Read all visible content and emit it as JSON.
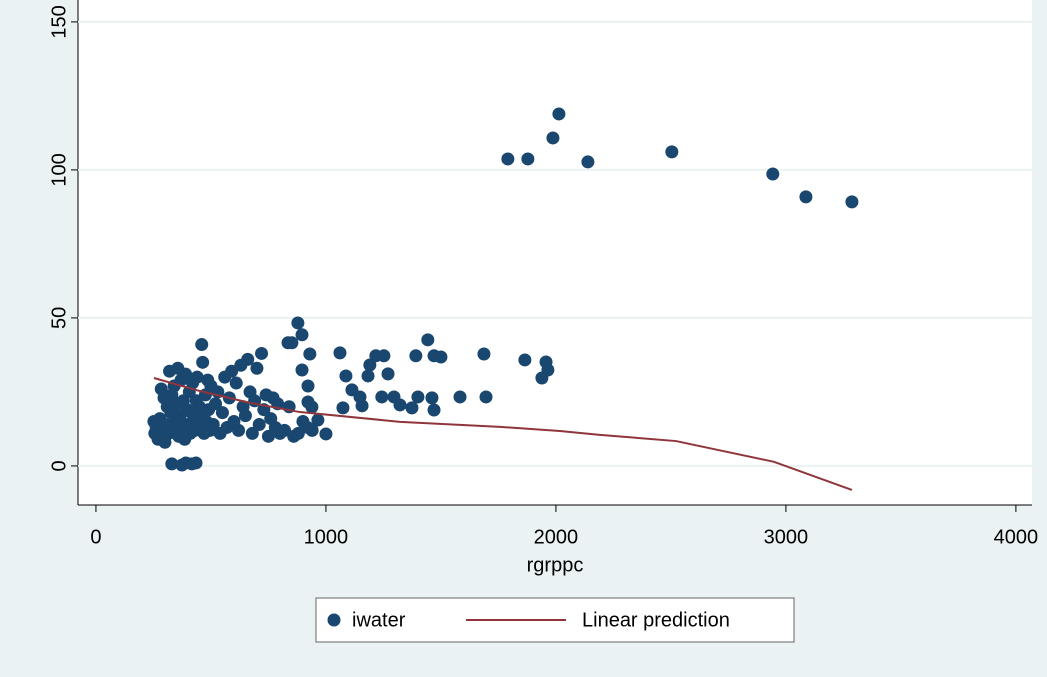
{
  "chart_data": {
    "type": "scatter",
    "xlabel": "rgrppc",
    "xlim": [
      -78,
      4070
    ],
    "ylim": [
      -13.2,
      157.4
    ],
    "xticks": [
      0,
      1000,
      2000,
      3000,
      4000
    ],
    "yticks": [
      0,
      50,
      100,
      150
    ],
    "grid": true,
    "series": [
      {
        "name": "iwater",
        "mark": "scatter",
        "color": "#1a476f",
        "x": [
          1791,
          1878,
          1987,
          2013,
          2139,
          2504,
          2943,
          3087,
          3287,
          878,
          896,
          852,
          835,
          930,
          896,
          922,
          922,
          939,
          965,
          1000,
          1061,
          1087,
          1074,
          1113,
          1148,
          1157,
          1183,
          1191,
          1217,
          1252,
          1270,
          1243,
          1296,
          1322,
          1374,
          1400,
          1391,
          1443,
          1470,
          1500,
          1461,
          1470,
          1583,
          1687,
          1696,
          1865,
          1957,
          1965,
          1939,
          330,
          374,
          391,
          417,
          435,
          252,
          256,
          262,
          270,
          278,
          284,
          290,
          296,
          300,
          304,
          310,
          316,
          320,
          326,
          330,
          336,
          340,
          346,
          350,
          356,
          360,
          366,
          370,
          376,
          380,
          386,
          390,
          396,
          400,
          406,
          410,
          416,
          420,
          426,
          430,
          436,
          440,
          446,
          450,
          456,
          460,
          464,
          470,
          476,
          480,
          486,
          490,
          496,
          500,
          510,
          520,
          530,
          540,
          550,
          560,
          570,
          580,
          590,
          600,
          610,
          620,
          630,
          640,
          650,
          660,
          670,
          680,
          690,
          700,
          710,
          720,
          730,
          740,
          750,
          760,
          770,
          780,
          790,
          800,
          820,
          840,
          860,
          880,
          900,
          920,
          940
        ],
        "values": [
          103.7,
          103.7,
          110.8,
          118.9,
          102.7,
          106.1,
          98.6,
          90.9,
          89.2,
          48.3,
          44.3,
          41.6,
          41.6,
          37.8,
          32.4,
          27,
          21.6,
          19.9,
          15.5,
          10.8,
          38.2,
          30.4,
          19.6,
          25.7,
          23.3,
          20.3,
          30.4,
          34.1,
          37.2,
          37.2,
          31.1,
          23.3,
          23.3,
          20.6,
          19.6,
          23.3,
          37.2,
          42.6,
          37.2,
          36.8,
          23,
          18.9,
          23.3,
          37.8,
          23.3,
          35.8,
          35.1,
          32.4,
          29.7,
          0.7,
          0.3,
          1,
          0.7,
          1,
          15,
          11,
          13,
          9,
          16,
          26,
          10,
          23,
          8,
          14,
          20,
          11,
          32,
          18,
          24,
          12,
          27,
          15,
          21,
          33,
          10,
          17,
          29,
          13,
          22,
          9,
          31,
          19,
          14,
          25,
          11,
          18,
          28,
          16,
          12,
          22,
          30,
          13,
          20,
          17,
          41,
          35,
          11,
          24,
          15,
          29,
          19,
          12,
          27,
          14,
          21,
          25,
          11,
          18,
          30,
          13,
          23,
          32,
          15,
          28,
          12,
          34,
          20,
          17,
          36,
          25,
          11,
          22,
          33,
          14,
          38,
          19,
          24,
          10,
          16,
          23,
          13,
          21,
          11,
          12,
          20,
          10,
          11,
          15,
          13,
          12
        ]
      },
      {
        "name": "Linear prediction",
        "mark": "line",
        "color": "#90353b",
        "x": [
          252,
          452,
          670,
          887,
          1322,
          1757,
          2017,
          2191,
          2522,
          2948,
          3287
        ],
        "values": [
          29.7,
          25.3,
          21.3,
          18.2,
          14.9,
          13.2,
          11.8,
          10.5,
          8.4,
          1.4,
          -8.1
        ]
      }
    ]
  }
}
